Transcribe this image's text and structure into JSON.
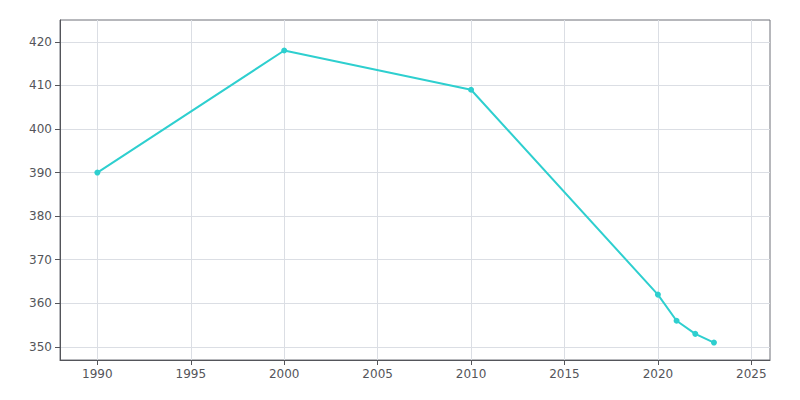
{
  "chart_data": {
    "type": "line",
    "x": [
      1990,
      2000,
      2010,
      2020,
      2021,
      2022,
      2023
    ],
    "values": [
      390,
      418,
      409,
      362,
      356,
      353,
      351
    ],
    "color": "#2ecfcf",
    "marker": "circle",
    "xlim": [
      1988,
      2026
    ],
    "ylim": [
      347,
      425
    ],
    "xticks": [
      1990,
      1995,
      2000,
      2005,
      2010,
      2015,
      2020,
      2025
    ],
    "yticks": [
      350,
      360,
      370,
      380,
      390,
      400,
      410,
      420
    ],
    "grid": true
  }
}
